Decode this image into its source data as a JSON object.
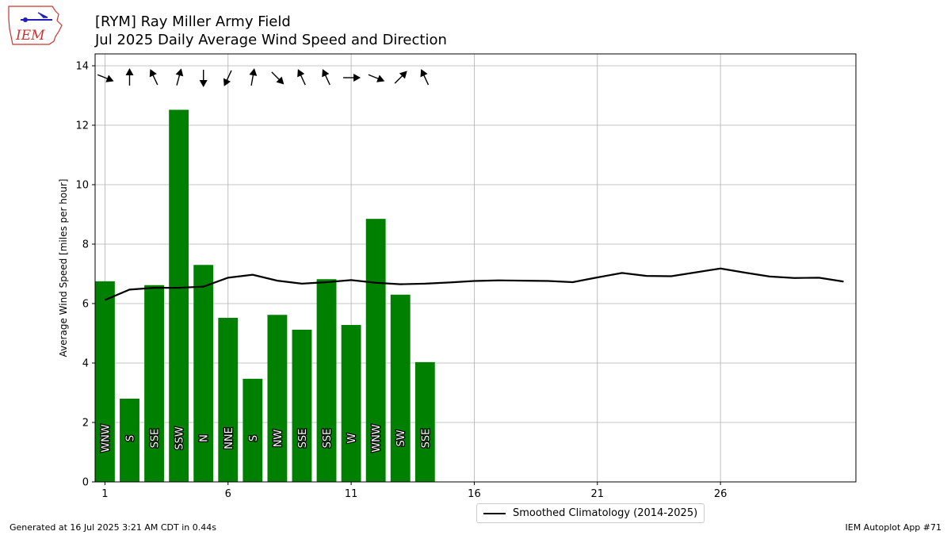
{
  "header": {
    "title_line1": "[RYM] Ray Miller Army Field",
    "title_line2": "Jul 2025 Daily Average Wind Speed and Direction"
  },
  "logo": {
    "text": "IEM"
  },
  "footer": {
    "left": "Generated at 16 Jul 2025 3:21 AM CDT in 0.44s",
    "right": "IEM Autoplot App #71"
  },
  "legend": {
    "climatology_label": "Smoothed Climatology (2014-2025)"
  },
  "colors": {
    "bar": "#008000",
    "line": "#000000",
    "grid": "#b0b0b0"
  },
  "chart_data": {
    "type": "bar",
    "title": "[RYM] Ray Miller Army Field",
    "subtitle": "Jul 2025 Daily Average Wind Speed and Direction",
    "xlabel": "",
    "ylabel": "Average Wind Speed [miles per hour]",
    "xlim": [
      0.6,
      31.5
    ],
    "ylim": [
      0,
      14.4
    ],
    "x_ticks": [
      1,
      6,
      11,
      16,
      21,
      26
    ],
    "y_ticks": [
      0,
      2,
      4,
      6,
      8,
      10,
      12,
      14
    ],
    "grid": true,
    "legend_position": "bottom-center",
    "days": [
      1,
      2,
      3,
      4,
      5,
      6,
      7,
      8,
      9,
      10,
      11,
      12,
      13,
      14
    ],
    "values": [
      6.75,
      2.8,
      6.62,
      12.52,
      7.3,
      5.52,
      3.47,
      5.62,
      5.12,
      6.82,
      5.28,
      8.85,
      6.3,
      4.03
    ],
    "directions": [
      "WNW",
      "S",
      "SSE",
      "SSW",
      "N",
      "NNE",
      "S",
      "NW",
      "SSE",
      "SSE",
      "W",
      "WNW",
      "SW",
      "SSE"
    ],
    "arrow_bearings": [
      112,
      0,
      335,
      15,
      180,
      205,
      10,
      135,
      335,
      335,
      90,
      112,
      45,
      335
    ],
    "series": [
      {
        "name": "Smoothed Climatology (2014-2025)",
        "type": "line",
        "x": [
          1,
          2,
          3,
          4,
          5,
          6,
          7,
          8,
          9,
          10,
          11,
          12,
          13,
          14,
          15,
          16,
          17,
          18,
          19,
          20,
          21,
          22,
          23,
          24,
          25,
          26,
          27,
          28,
          29,
          30,
          31
        ],
        "values": [
          6.12,
          6.47,
          6.53,
          6.53,
          6.57,
          6.87,
          6.97,
          6.77,
          6.67,
          6.72,
          6.79,
          6.7,
          6.65,
          6.67,
          6.71,
          6.76,
          6.78,
          6.77,
          6.76,
          6.72,
          6.88,
          7.03,
          6.93,
          6.92,
          7.05,
          7.18,
          7.04,
          6.91,
          6.86,
          6.87,
          6.74
        ]
      }
    ]
  }
}
